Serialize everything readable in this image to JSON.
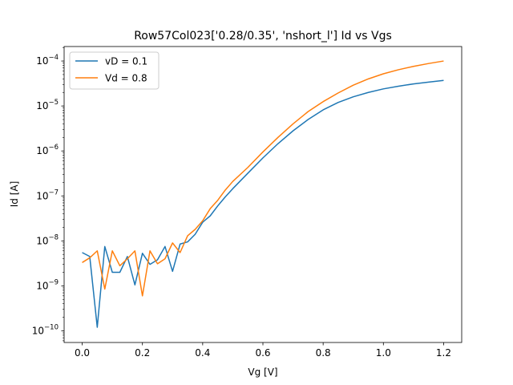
{
  "chart_data": {
    "type": "line",
    "title": "Row57Col023['0.28/0.35', 'nshort_l'] Id vs Vgs",
    "xlabel": "Vg [V]",
    "ylabel": "Id [A]",
    "xlim": [
      -0.06,
      1.26
    ],
    "ylim": [
      5.5e-11,
      0.00021
    ],
    "yscale": "log",
    "grid": false,
    "legend_position": "upper-left",
    "x_ticks": [
      0.0,
      0.2,
      0.4,
      0.6,
      0.8,
      1.0,
      1.2
    ],
    "x_tick_labels": [
      "0.0",
      "0.2",
      "0.4",
      "0.6",
      "0.8",
      "1.0",
      "1.2"
    ],
    "y_ticks": [
      {
        "value": 1e-10,
        "base": "10",
        "exp": "−10"
      },
      {
        "value": 1e-09,
        "base": "10",
        "exp": "−9"
      },
      {
        "value": 1e-08,
        "base": "10",
        "exp": "−8"
      },
      {
        "value": 1e-07,
        "base": "10",
        "exp": "−7"
      },
      {
        "value": 1e-06,
        "base": "10",
        "exp": "−6"
      },
      {
        "value": 1e-05,
        "base": "10",
        "exp": "−5"
      },
      {
        "value": 0.0001,
        "base": "10",
        "exp": "−4"
      }
    ],
    "x": [
      0.0,
      0.025,
      0.05,
      0.075,
      0.1,
      0.125,
      0.15,
      0.175,
      0.2,
      0.225,
      0.25,
      0.275,
      0.3,
      0.325,
      0.35,
      0.375,
      0.4,
      0.425,
      0.45,
      0.475,
      0.5,
      0.55,
      0.6,
      0.65,
      0.7,
      0.75,
      0.8,
      0.85,
      0.9,
      0.95,
      1.0,
      1.05,
      1.1,
      1.15,
      1.2
    ],
    "series": [
      {
        "name": "vD = 0.1",
        "color": "#1f77b4",
        "values": [
          5.5e-09,
          4.5e-09,
          1.2e-10,
          7.5e-09,
          2e-09,
          2e-09,
          4.5e-09,
          1.05e-09,
          5.3e-09,
          3e-09,
          3.8e-09,
          7.5e-09,
          2.1e-09,
          8.5e-09,
          9.5e-09,
          1.4e-08,
          2.6e-08,
          3.6e-08,
          6e-08,
          9.5e-08,
          1.45e-07,
          3.2e-07,
          7e-07,
          1.45e-06,
          2.8e-06,
          5e-06,
          8.2e-06,
          1.2e-05,
          1.6e-05,
          2e-05,
          2.4e-05,
          2.75e-05,
          3.1e-05,
          3.4e-05,
          3.7e-05
        ]
      },
      {
        "name": "Vd = 0.8",
        "color": "#ff7f0e",
        "values": [
          3.3e-09,
          4.2e-09,
          6e-09,
          8.5e-10,
          6e-09,
          2.8e-09,
          4e-09,
          6e-09,
          6e-10,
          6e-09,
          3.1e-09,
          4e-09,
          9e-09,
          5.5e-09,
          1.3e-08,
          1.8e-08,
          2.8e-08,
          5.2e-08,
          8e-08,
          1.35e-07,
          2.1e-07,
          4.3e-07,
          9.5e-07,
          2e-06,
          4e-06,
          7.5e-06,
          1.25e-05,
          1.95e-05,
          2.9e-05,
          4e-05,
          5.2e-05,
          6.4e-05,
          7.6e-05,
          8.8e-05,
          0.0001
        ]
      }
    ]
  }
}
